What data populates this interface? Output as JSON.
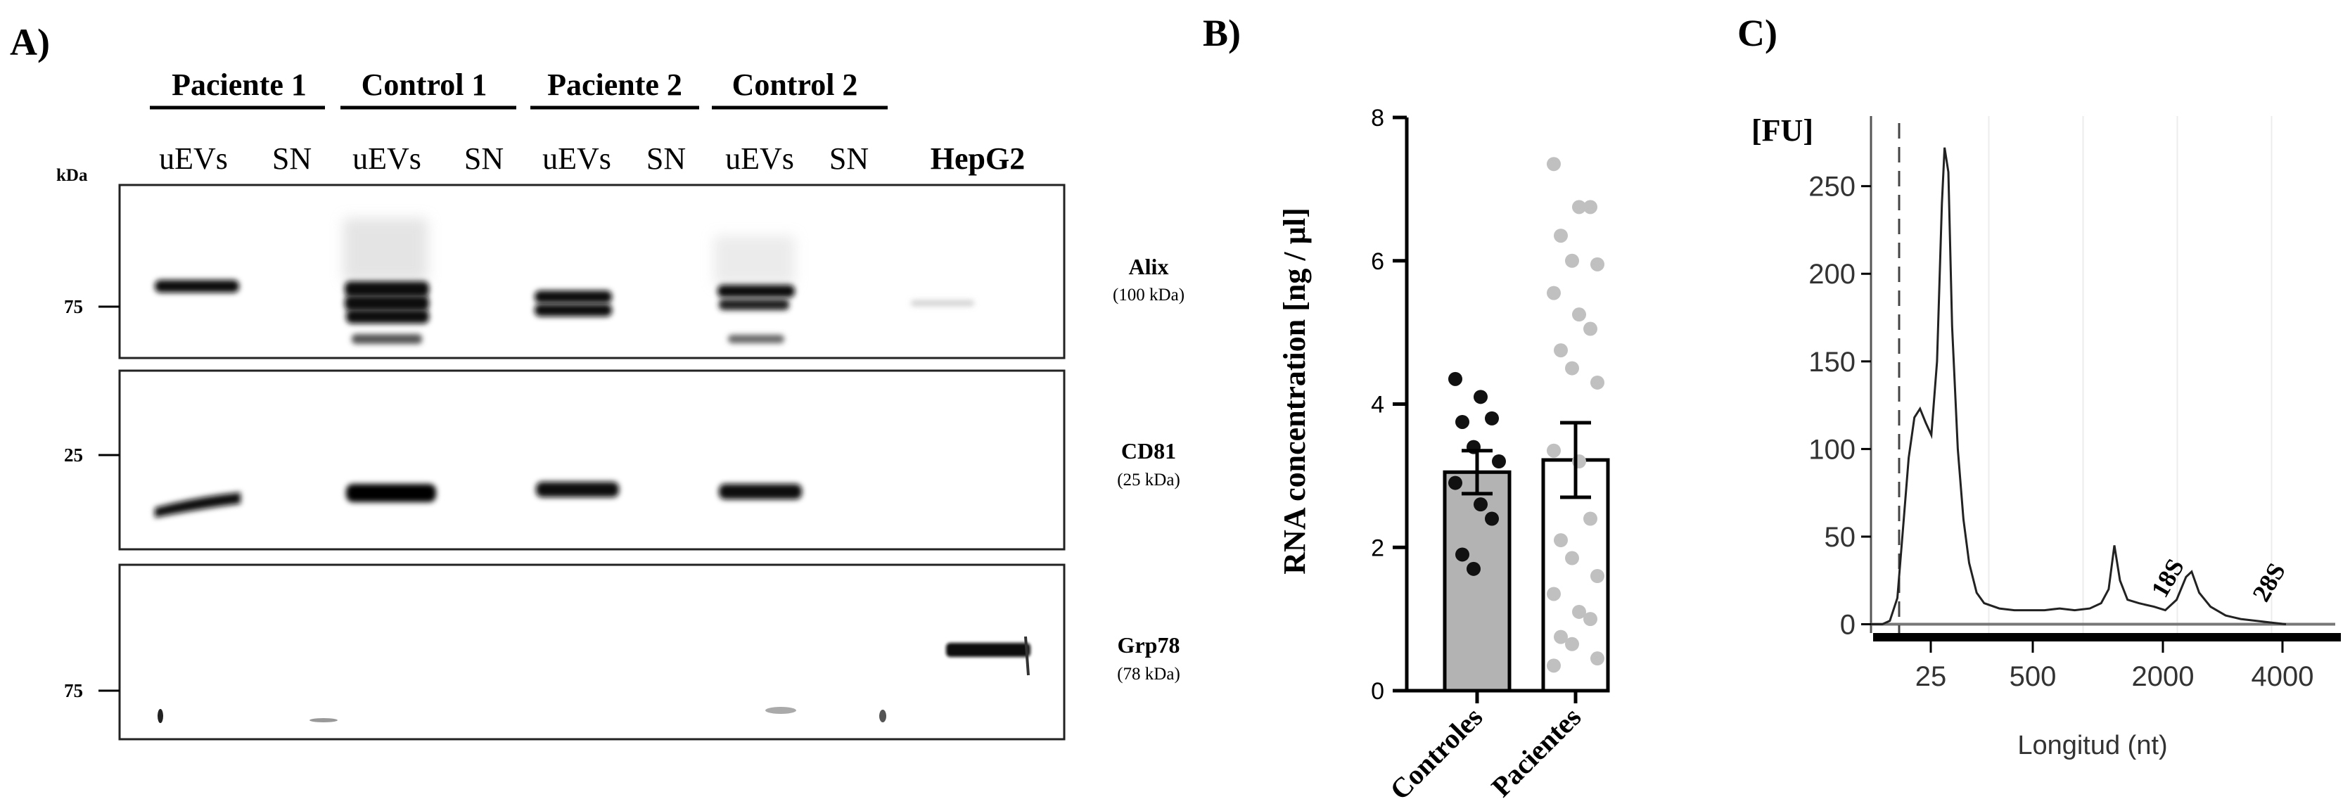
{
  "panel_a": {
    "label": "A)",
    "kda_label": "kDa",
    "groups": [
      "Paciente 1",
      "Control 1",
      "Paciente 2",
      "Control 2"
    ],
    "lanes": [
      "uEVs",
      "SN",
      "uEVs",
      "SN",
      "uEVs",
      "SN",
      "uEVs",
      "SN",
      "HepG2"
    ],
    "blots": [
      {
        "name": "Alix",
        "size": "(100 kDa)",
        "marker": "75"
      },
      {
        "name": "CD81",
        "size": "(25 kDa)",
        "marker": "25"
      },
      {
        "name": "Grp78",
        "size": "(78 kDa)",
        "marker": "75"
      }
    ]
  },
  "panel_b": {
    "label": "B)"
  },
  "panel_c": {
    "label": "C)"
  },
  "chart_data": [
    {
      "type": "bar",
      "title": "",
      "xlabel": "",
      "ylabel": "RNA concentration [ng / µl]",
      "categories": [
        "Controles",
        "Pacientes"
      ],
      "values": [
        3.05,
        3.22
      ],
      "errors": [
        0.3,
        0.52
      ],
      "ylim": [
        0,
        8
      ],
      "yticks": [
        "0",
        "2",
        "4",
        "6",
        "8"
      ],
      "colors": {
        "Controles": "#b3b3b3",
        "Pacientes": "#ffffff",
        "points_controles": "#111111",
        "points_pacientes": "#c0c0c0"
      },
      "points": {
        "Controles": [
          4.35,
          4.1,
          3.8,
          3.75,
          3.4,
          3.2,
          2.9,
          2.6,
          2.4,
          1.9,
          1.7
        ],
        "Pacientes": [
          7.35,
          6.75,
          6.75,
          6.35,
          6.0,
          5.95,
          5.55,
          5.25,
          5.05,
          4.75,
          4.5,
          4.3,
          3.35,
          3.2,
          2.4,
          2.1,
          1.85,
          1.6,
          1.35,
          1.1,
          1.0,
          0.75,
          0.65,
          0.45,
          0.35
        ]
      }
    },
    {
      "type": "line",
      "title": "",
      "xlabel": "Longitud (nt)",
      "ylabel": "[FU]",
      "y_ticks": [
        "0",
        "50",
        "100",
        "150",
        "200",
        "250"
      ],
      "ylim": [
        -5,
        290
      ],
      "x_tick_labels": [
        "25",
        "500",
        "2000",
        "4000"
      ],
      "annotations": [
        "18S",
        "28S"
      ],
      "series": [
        {
          "values": [
            [
              0.0,
              0
            ],
            [
              0.3,
              0
            ],
            [
              0.5,
              2
            ],
            [
              0.7,
              15
            ],
            [
              0.85,
              55
            ],
            [
              1.0,
              95
            ],
            [
              1.15,
              118
            ],
            [
              1.3,
              123
            ],
            [
              1.45,
              115
            ],
            [
              1.6,
              108
            ],
            [
              1.75,
              150
            ],
            [
              1.88,
              240
            ],
            [
              1.95,
              272
            ],
            [
              2.05,
              258
            ],
            [
              2.15,
              170
            ],
            [
              2.3,
              100
            ],
            [
              2.45,
              60
            ],
            [
              2.6,
              35
            ],
            [
              2.8,
              18
            ],
            [
              3.0,
              12
            ],
            [
              3.4,
              9
            ],
            [
              3.8,
              8
            ],
            [
              4.2,
              8
            ],
            [
              4.6,
              8
            ],
            [
              5.0,
              9
            ],
            [
              5.4,
              8
            ],
            [
              5.8,
              9
            ],
            [
              6.1,
              12
            ],
            [
              6.3,
              20
            ],
            [
              6.45,
              45
            ],
            [
              6.6,
              25
            ],
            [
              6.8,
              14
            ],
            [
              7.1,
              12
            ],
            [
              7.5,
              10
            ],
            [
              7.8,
              8
            ],
            [
              8.1,
              14
            ],
            [
              8.35,
              27
            ],
            [
              8.5,
              30
            ],
            [
              8.7,
              18
            ],
            [
              9.0,
              10
            ],
            [
              9.4,
              5
            ],
            [
              9.8,
              3
            ],
            [
              10.2,
              2
            ],
            [
              10.6,
              1
            ],
            [
              11.0,
              0
            ]
          ]
        }
      ]
    }
  ]
}
